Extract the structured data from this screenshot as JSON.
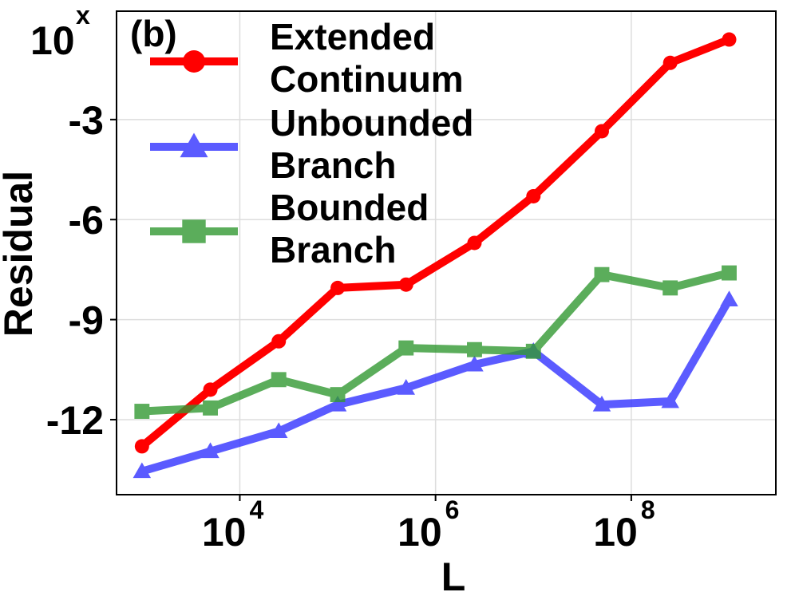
{
  "chart_data": {
    "type": "line",
    "panel_label": "(b)",
    "xlabel": "L",
    "ylabel": "Residual",
    "y_exponent_label": {
      "base": "10",
      "exp": "x"
    },
    "xscale": "log",
    "xlim": [
      550,
      3000000000
    ],
    "ylim": [
      -14.25,
      0.25
    ],
    "xticks": [
      {
        "value": 10000,
        "base": "10",
        "exp": "4"
      },
      {
        "value": 1000000,
        "base": "10",
        "exp": "6"
      },
      {
        "value": 100000000,
        "base": "10",
        "exp": "8"
      }
    ],
    "yticks": [
      {
        "value": -3,
        "label": "-3"
      },
      {
        "value": -6,
        "label": "-6"
      },
      {
        "value": -9,
        "label": "-9"
      },
      {
        "value": -12,
        "label": "-12"
      }
    ],
    "grid": true,
    "legend_position": "top-left",
    "series": [
      {
        "name": "Extended Continuum",
        "legend_lines": [
          "Extended",
          "Continuum"
        ],
        "color": "#ff0000",
        "marker": "circle",
        "x": [
          1000,
          5000,
          25000,
          100000,
          500000,
          2500000,
          10000000,
          50000000,
          250000000,
          1000000000
        ],
        "y": [
          -12.8,
          -11.1,
          -9.65,
          -8.05,
          -7.95,
          -6.7,
          -5.3,
          -3.35,
          -1.3,
          -0.6
        ]
      },
      {
        "name": "Unbounded Branch",
        "legend_lines": [
          "Unbounded",
          "Branch"
        ],
        "color": "#3333ff",
        "marker": "triangle",
        "x": [
          1000,
          5000,
          25000,
          100000,
          500000,
          2500000,
          10000000,
          50000000,
          250000000,
          1000000000
        ],
        "y": [
          -13.55,
          -12.95,
          -12.35,
          -11.55,
          -11.05,
          -10.35,
          -9.95,
          -11.55,
          -11.45,
          -8.4
        ]
      },
      {
        "name": "Bounded Branch",
        "legend_lines": [
          "Bounded",
          "Branch"
        ],
        "color": "#339933",
        "marker": "square",
        "x": [
          1000,
          5000,
          25000,
          100000,
          500000,
          2500000,
          10000000,
          50000000,
          250000000,
          1000000000
        ],
        "y": [
          -11.75,
          -11.65,
          -10.8,
          -11.25,
          -9.85,
          -9.9,
          -9.95,
          -7.65,
          -8.05,
          -7.6
        ]
      }
    ]
  }
}
